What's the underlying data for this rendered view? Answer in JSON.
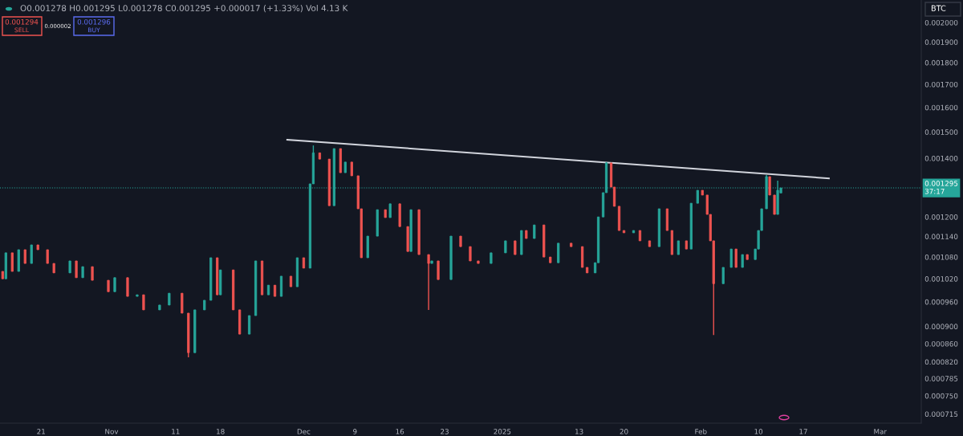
{
  "chart_data": {
    "type": "candlestick",
    "log": true,
    "colors": [
      "#ef5350",
      "#26a69a",
      "#ef5350",
      "#26a69a",
      "#ef5350",
      "#26a69a",
      "#ef5350",
      "#ef5350",
      "#ef5350",
      "#26a69a",
      "#ef5350",
      "#26a69a",
      "#ef5350",
      "#ef5350",
      "#26a69a",
      "#ef5350",
      "#26a69a",
      "#ef5350",
      "#26a69a",
      "#26a69a",
      "#ef5350",
      "#ef5350",
      "#26a69a",
      "#26a69a",
      "#26a69a",
      "#ef5350",
      "#26a69a",
      "#ef5350",
      "#ef5350",
      "#26a69a",
      "#26a69a",
      "#ef5350",
      "#26a69a",
      "#ef5350",
      "#26a69a",
      "#ef5350",
      "#26a69a",
      "#ef5350",
      "#26a69a",
      "#26a69a",
      "#ef5350",
      "#ef5350",
      "#26a69a",
      "#ef5350",
      "#26a69a",
      "#ef5350",
      "#ef5350",
      "#ef5350",
      "#26a69a",
      "#26a69a",
      "#ef5350",
      "#26a69a",
      "#ef5350",
      "#ef5350",
      "#26a69a",
      "#ef5350",
      "#ef5350",
      "#26a69a",
      "#ef5350",
      "#26a69a",
      "#ef5350",
      "#ef5350",
      "#ef5350",
      "#26a69a",
      "#26a69a",
      "#ef5350",
      "#26a69a",
      "#ef5350",
      "#26a69a",
      "#ef5350",
      "#ef5350",
      "#26a69a",
      "#ef5350",
      "#ef5350",
      "#ef5350",
      "#26a69a",
      "#26a69a",
      "#26a69a",
      "#26a69a",
      "#ef5350",
      "#ef5350",
      "#ef5350",
      "#ef5350",
      "#26a69a",
      "#ef5350",
      "#ef5350",
      "#26a69a",
      "#ef5350",
      "#ef5350",
      "#26a69a",
      "#ef5350",
      "#26a69a",
      "#26a69a",
      "#ef5350",
      "#ef5350",
      "#ef5350",
      "#ef5350",
      "#26a69a",
      "#26a69a",
      "#ef5350",
      "#26a69a",
      "#ef5350",
      "#26a69a",
      "#26a69a",
      "#26a69a",
      "#26a69a",
      "#ef5350",
      "#ef5350",
      "#26a69a",
      "#26a69a"
    ],
    "x": [
      "2024-10-15T00:00",
      "2024-10-15T12:00",
      "2024-10-16T12:00",
      "2024-10-17T12:00",
      "2024-10-18T12:00",
      "2024-10-19T12:00",
      "2024-10-20T12:00",
      "2024-10-22T00:00",
      "2024-10-23T00:00",
      "2024-10-25T12:00",
      "2024-10-26T12:00",
      "2024-10-27T12:00",
      "2024-10-29T00:00",
      "2024-10-31T12:00",
      "2024-11-01T12:00",
      "2024-11-03T12:00",
      "2024-11-05T00:00",
      "2024-11-06T00:00",
      "2024-11-08T12:00",
      "2024-11-10T00:00",
      "2024-11-12T00:00",
      "2024-11-13T00:00",
      "2024-11-14T00:00",
      "2024-11-15T12:00",
      "2024-11-16T12:00",
      "2024-11-17T12:00",
      "2024-11-18T00:00",
      "2024-11-20T00:00",
      "2024-11-21T00:00",
      "2024-11-22T12:00",
      "2024-11-23T12:00",
      "2024-11-24T12:00",
      "2024-11-25T12:00",
      "2024-11-26T12:00",
      "2024-11-27T12:00",
      "2024-11-29T00:00",
      "2024-11-30T00:00",
      "2024-12-01T00:00",
      "2024-12-02T00:00",
      "2024-12-02T12:00",
      "2024-12-03T12:00",
      "2024-12-05T00:00",
      "2024-12-05T18:00",
      "2024-12-06T18:00",
      "2024-12-07T12:00",
      "2024-12-08T12:00",
      "2024-12-09T12:00",
      "2024-12-10T00:00",
      "2024-12-11T00:00",
      "2024-12-12T12:00",
      "2024-12-13T18:00",
      "2024-12-14T12:00",
      "2024-12-16T00:00",
      "2024-12-17T06:00",
      "2024-12-17T18:00",
      "2024-12-19T00:00",
      "2024-12-20T12:00",
      "2024-12-21T00:00",
      "2024-12-22T00:00",
      "2024-12-24T00:00",
      "2024-12-25T12:00",
      "2024-12-27T00:00",
      "2024-12-28T06:00",
      "2024-12-30T06:00",
      "2025-01-01T12:00",
      "2025-01-03T00:00",
      "2025-01-04T00:00",
      "2025-01-04T18:00",
      "2025-01-06T00:00",
      "2025-01-07T12:00",
      "2025-01-08T12:00",
      "2025-01-09T18:00",
      "2025-01-11T18:00",
      "2025-01-13T12:00",
      "2025-01-14T06:00",
      "2025-01-15T12:00",
      "2025-01-16T00:00",
      "2025-01-16T18:00",
      "2025-01-17T06:00",
      "2025-01-18T00:00",
      "2025-01-18T12:00",
      "2025-01-19T06:00",
      "2025-01-20T00:00",
      "2025-01-21T12:00",
      "2025-01-22T12:00",
      "2025-01-24T00:00",
      "2025-01-25T12:00",
      "2025-01-26T18:00",
      "2025-01-27T12:00",
      "2025-01-28T12:00",
      "2025-01-29T18:00",
      "2025-01-30T12:00",
      "2025-01-31T12:00",
      "2025-02-01T06:00",
      "2025-02-02T00:00",
      "2025-02-02T12:00",
      "2025-02-03T00:00",
      "2025-02-04T12:00",
      "2025-02-05T18:00",
      "2025-02-06T12:00",
      "2025-02-07T12:00",
      "2025-02-08T06:00",
      "2025-02-09T12:00",
      "2025-02-10T00:00",
      "2025-02-10T12:00",
      "2025-02-11T06:00",
      "2025-02-11T18:00",
      "2025-02-12T12:00",
      "2025-02-13T00:00",
      "2025-02-13T12:00"
    ],
    "ohlc": [
      [
        0.00104,
        0.00104,
        0.00102,
        0.00102
      ],
      [
        0.00102,
        0.001092,
        0.00102,
        0.001092
      ],
      [
        0.001092,
        0.001092,
        0.00104,
        0.00104
      ],
      [
        0.00104,
        0.001101,
        0.00104,
        0.001101
      ],
      [
        0.001101,
        0.001101,
        0.001062,
        0.001062
      ],
      [
        0.001062,
        0.001115,
        0.001062,
        0.001115
      ],
      [
        0.001115,
        0.001115,
        0.001101,
        0.001101
      ],
      [
        0.001101,
        0.001101,
        0.001062,
        0.001062
      ],
      [
        0.001062,
        0.001062,
        0.001036,
        0.001036
      ],
      [
        0.001036,
        0.001069,
        0.001036,
        0.001069
      ],
      [
        0.001069,
        0.001069,
        0.001023,
        0.001023
      ],
      [
        0.001023,
        0.001053,
        0.001023,
        0.001053
      ],
      [
        0.001053,
        0.001053,
        0.001016,
        0.001016
      ],
      [
        0.001016,
        0.001016,
        0.000986,
        0.000986
      ],
      [
        0.000986,
        0.001023,
        0.000986,
        0.001023
      ],
      [
        0.001023,
        0.001023,
        0.000974,
        0.000974
      ],
      [
        0.000974,
        0.000978,
        0.000974,
        0.000978
      ],
      [
        0.000978,
        0.000978,
        0.00094,
        0.00094
      ],
      [
        0.00094,
        0.000952,
        0.00094,
        0.000952
      ],
      [
        0.000952,
        0.000982,
        0.000952,
        0.000982
      ],
      [
        0.000982,
        0.000982,
        0.000932,
        0.000932
      ],
      [
        0.000932,
        0.000932,
        0.00083,
        0.00084
      ],
      [
        0.00084,
        0.00094,
        0.00084,
        0.00094
      ],
      [
        0.00094,
        0.000964,
        0.00094,
        0.000964
      ],
      [
        0.000964,
        0.001078,
        0.000964,
        0.001078
      ],
      [
        0.001078,
        0.001078,
        0.000978,
        0.000978
      ],
      [
        0.000978,
        0.001044,
        0.000978,
        0.001044
      ],
      [
        0.001044,
        0.001044,
        0.00094,
        0.00094
      ],
      [
        0.00094,
        0.00094,
        0.000882,
        0.000882
      ],
      [
        0.000882,
        0.000926,
        0.000882,
        0.000926
      ],
      [
        0.000926,
        0.001069,
        0.000926,
        0.001069
      ],
      [
        0.001069,
        0.001069,
        0.000978,
        0.000978
      ],
      [
        0.000978,
        0.001003,
        0.000978,
        0.001003
      ],
      [
        0.001003,
        0.001003,
        0.000974,
        0.000974
      ],
      [
        0.000974,
        0.001027,
        0.000974,
        0.001027
      ],
      [
        0.001027,
        0.001027,
        0.000999,
        0.000999
      ],
      [
        0.000999,
        0.001078,
        0.000999,
        0.001078
      ],
      [
        0.001078,
        0.001078,
        0.001049,
        0.001049
      ],
      [
        0.001049,
        0.001309,
        0.001049,
        0.001309
      ],
      [
        0.001309,
        0.001448,
        0.001309,
        0.00142
      ],
      [
        0.00142,
        0.00142,
        0.001397,
        0.001397
      ],
      [
        0.001397,
        0.001397,
        0.001236,
        0.001236
      ],
      [
        0.001236,
        0.001436,
        0.001236,
        0.001436
      ],
      [
        0.001436,
        0.001436,
        0.001348,
        0.001348
      ],
      [
        0.001348,
        0.001386,
        0.001348,
        0.001386
      ],
      [
        0.001386,
        0.001386,
        0.001337,
        0.001337
      ],
      [
        0.001337,
        0.001337,
        0.001226,
        0.001226
      ],
      [
        0.001226,
        0.001226,
        0.001078,
        0.001078
      ],
      [
        0.001078,
        0.001141,
        0.001078,
        0.001141
      ],
      [
        0.001141,
        0.001223,
        0.001141,
        0.001223
      ],
      [
        0.001223,
        0.001223,
        0.001198,
        0.001198
      ],
      [
        0.001198,
        0.001242,
        0.001198,
        0.001242
      ],
      [
        0.001242,
        0.001242,
        0.00117,
        0.00117
      ],
      [
        0.00117,
        0.00117,
        0.001096,
        0.001096
      ],
      [
        0.001096,
        0.001223,
        0.001096,
        0.001223
      ],
      [
        0.001223,
        0.001223,
        0.001087,
        0.001087
      ],
      [
        0.001087,
        0.001087,
        0.00094,
        0.001062
      ],
      [
        0.001062,
        0.001069,
        0.001062,
        0.001069
      ],
      [
        0.001069,
        0.001069,
        0.001018,
        0.001018
      ],
      [
        0.001018,
        0.001141,
        0.001018,
        0.001141
      ],
      [
        0.001141,
        0.001141,
        0.00111,
        0.00111
      ],
      [
        0.00111,
        0.00111,
        0.001069,
        0.001069
      ],
      [
        0.001069,
        0.001069,
        0.001062,
        0.001062
      ],
      [
        0.001062,
        0.001092,
        0.001062,
        0.001092
      ],
      [
        0.001092,
        0.001127,
        0.001092,
        0.001127
      ],
      [
        0.001127,
        0.001127,
        0.001087,
        0.001087
      ],
      [
        0.001087,
        0.001158,
        0.001087,
        0.001158
      ],
      [
        0.001158,
        0.001158,
        0.001134,
        0.001134
      ],
      [
        0.001134,
        0.001175,
        0.001134,
        0.001175
      ],
      [
        0.001175,
        0.001175,
        0.00108,
        0.00108
      ],
      [
        0.00108,
        0.00108,
        0.001064,
        0.001064
      ],
      [
        0.001064,
        0.00112,
        0.001064,
        0.00112
      ],
      [
        0.00112,
        0.00112,
        0.00111,
        0.00111
      ],
      [
        0.00111,
        0.00111,
        0.001051,
        0.001051
      ],
      [
        0.001051,
        0.001051,
        0.001036,
        0.001036
      ],
      [
        0.001036,
        0.001064,
        0.001036,
        0.001064
      ],
      [
        0.001064,
        0.0012,
        0.001064,
        0.0012
      ],
      [
        0.0012,
        0.001279,
        0.0012,
        0.001279
      ],
      [
        0.001279,
        0.001386,
        0.001279,
        0.001383
      ],
      [
        0.001383,
        0.001383,
        0.001298,
        0.001298
      ],
      [
        0.001298,
        0.001298,
        0.001234,
        0.001234
      ],
      [
        0.001234,
        0.001234,
        0.001158,
        0.001158
      ],
      [
        0.001158,
        0.001158,
        0.001151,
        0.001151
      ],
      [
        0.001151,
        0.001158,
        0.001151,
        0.001158
      ],
      [
        0.001158,
        0.001158,
        0.001127,
        0.001127
      ],
      [
        0.001127,
        0.001127,
        0.00111,
        0.00111
      ],
      [
        0.00111,
        0.001226,
        0.00111,
        0.001226
      ],
      [
        0.001226,
        0.001226,
        0.001158,
        0.001158
      ],
      [
        0.001158,
        0.001158,
        0.001087,
        0.001087
      ],
      [
        0.001087,
        0.001127,
        0.001087,
        0.001127
      ],
      [
        0.001127,
        0.001127,
        0.001103,
        0.001103
      ],
      [
        0.001103,
        0.001244,
        0.001103,
        0.001244
      ],
      [
        0.001244,
        0.001287,
        0.001244,
        0.001287
      ],
      [
        0.001287,
        0.001287,
        0.001271,
        0.001271
      ],
      [
        0.001271,
        0.001271,
        0.001208,
        0.001208
      ],
      [
        0.001208,
        0.001208,
        0.001127,
        0.001127
      ],
      [
        0.001127,
        0.001127,
        0.00088,
        0.001007
      ],
      [
        0.001007,
        0.001051,
        0.001007,
        0.001051
      ],
      [
        0.001051,
        0.001103,
        0.001051,
        0.001103
      ],
      [
        0.001103,
        0.001103,
        0.001051,
        0.001051
      ],
      [
        0.001051,
        0.001087,
        0.001051,
        0.001087
      ],
      [
        0.001087,
        0.001087,
        0.001073,
        0.001073
      ],
      [
        0.001073,
        0.001103,
        0.001073,
        0.001103
      ],
      [
        0.001103,
        0.001158,
        0.001103,
        0.001158
      ],
      [
        0.001158,
        0.001226,
        0.001158,
        0.001226
      ],
      [
        0.001226,
        0.00134,
        0.001226,
        0.001334
      ],
      [
        0.001334,
        0.001334,
        0.001271,
        0.001271
      ],
      [
        0.001271,
        0.001271,
        0.001208,
        0.001208
      ],
      [
        0.001208,
        0.00132,
        0.001208,
        0.001287
      ],
      [
        0.001278,
        0.001295,
        0.001278,
        0.001295
      ]
    ],
    "series": [
      {
        "type": "line",
        "color": "#d1d4dc",
        "x": [
          "2024-11-28T10:00",
          "2025-02-21T00:00"
        ],
        "values": [
          0.00147,
          0.001328
        ]
      }
    ],
    "ref_lines": [
      {
        "axis": "y",
        "value": 0.001295,
        "label": "0.001295\n37:17",
        "color": "#26a69a",
        "line_style": "dotted"
      }
    ],
    "xlim": [
      "2024-10-14T14:00",
      "2025-03-07T10:00"
    ],
    "ylim": [
      0.000698,
      0.002122
    ],
    "xticks": [
      {
        "value": "2024-10-21",
        "label": "21"
      },
      {
        "value": "2024-11-01",
        "label": "Nov"
      },
      {
        "value": "2024-11-11",
        "label": "11"
      },
      {
        "value": "2024-11-18",
        "label": "18"
      },
      {
        "value": "2024-12-01",
        "label": "Dec"
      },
      {
        "value": "2024-12-09",
        "label": "9"
      },
      {
        "value": "2024-12-16",
        "label": "16"
      },
      {
        "value": "2024-12-23",
        "label": "23"
      },
      {
        "value": "2025-01-01",
        "label": "2025"
      },
      {
        "value": "2025-01-13",
        "label": "13"
      },
      {
        "value": "2025-01-20",
        "label": "20"
      },
      {
        "value": "2025-02-01",
        "label": "Feb"
      },
      {
        "value": "2025-02-10",
        "label": "10"
      },
      {
        "value": "2025-02-17",
        "label": "17"
      },
      {
        "value": "2025-03-01",
        "label": "Mar"
      }
    ],
    "yticks": [
      {
        "value": 0.002,
        "label": "0.002000"
      },
      {
        "value": 0.0019,
        "label": "0.001900"
      },
      {
        "value": 0.0018,
        "label": "0.001800"
      },
      {
        "value": 0.0017,
        "label": "0.001700"
      },
      {
        "value": 0.0016,
        "label": "0.001600"
      },
      {
        "value": 0.0015,
        "label": "0.001500"
      },
      {
        "value": 0.0014,
        "label": "0.001400"
      },
      {
        "value": 0.0012,
        "label": "0.001200"
      },
      {
        "value": 0.00114,
        "label": "0.001140"
      },
      {
        "value": 0.00108,
        "label": "0.001080"
      },
      {
        "value": 0.00102,
        "label": "0.001020"
      },
      {
        "value": 0.00096,
        "label": "0.000960"
      },
      {
        "value": 0.0009,
        "label": "0.000900"
      },
      {
        "value": 0.00086,
        "label": "0.000860"
      },
      {
        "value": 0.00082,
        "label": "0.000820"
      },
      {
        "value": 0.000785,
        "label": "0.000785"
      },
      {
        "value": 0.00075,
        "label": "0.000750"
      },
      {
        "value": 0.000715,
        "label": "0.000715"
      }
    ],
    "annotations": [
      "O0.001278 H0.001295 L0.001278 C0.001295 +0.000017 (+1.33%) Vol 4.13 K",
      "0.001294",
      "SELL",
      "0.000002",
      "0.001296",
      "BUY",
      "BTC"
    ]
  }
}
